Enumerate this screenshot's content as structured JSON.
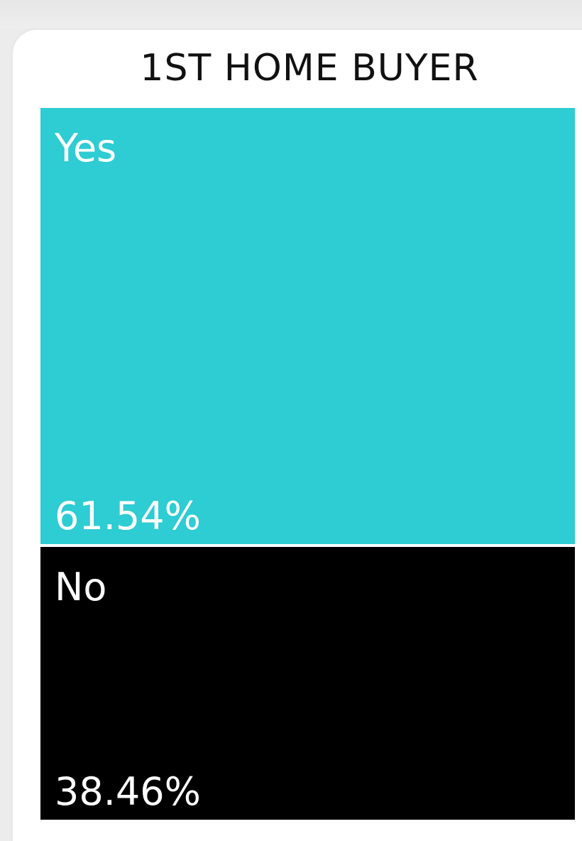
{
  "chart_data": {
    "type": "treemap",
    "title": "1ST HOME BUYER",
    "categories": [
      "Yes",
      "No"
    ],
    "values": [
      61.54,
      38.46
    ],
    "value_labels": [
      "61.54%",
      "38.46%"
    ],
    "colors": [
      "#2ECCD3",
      "#000000"
    ]
  }
}
